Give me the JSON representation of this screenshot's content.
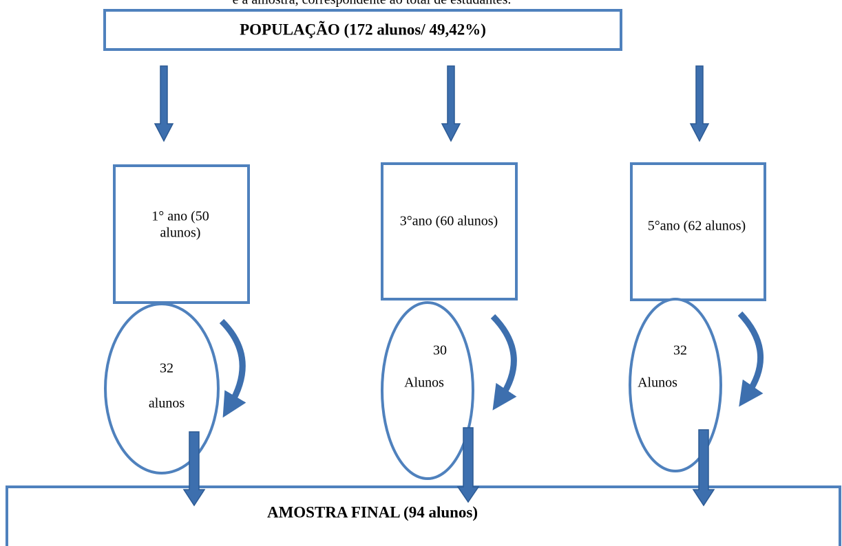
{
  "caption": "e a amostra, correspondente ao total de estudantes.",
  "header": {
    "title": "POPULAÇÃO (172 alunos/ 49,42%)"
  },
  "groups": [
    {
      "lines": [
        "1° ano (50",
        "alunos)"
      ],
      "sample_lines": [
        "32",
        "alunos"
      ]
    },
    {
      "lines": [
        "3°ano (60 alunos)"
      ],
      "sample_lines": [
        "30",
        "Alunos"
      ]
    },
    {
      "lines": [
        "5°ano (62 alunos)"
      ],
      "sample_lines": [
        "32",
        "Alunos"
      ]
    }
  ],
  "footer": {
    "title": "AMOSTRA FINAL (94 alunos)"
  }
}
